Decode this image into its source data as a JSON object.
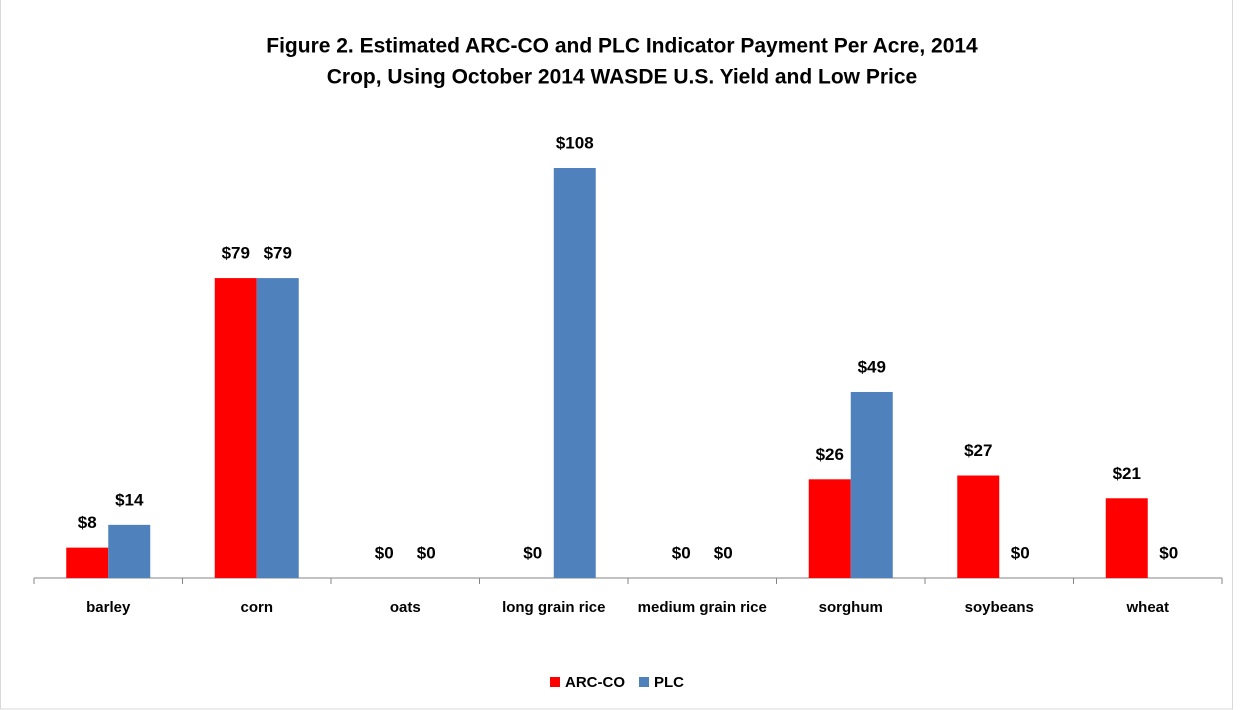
{
  "chart_data": {
    "type": "bar",
    "title": [
      "Figure 2.  Estimated ARC-CO and PLC Indicator Payment Per Acre, 2014",
      "Crop, Using October 2014 WASDE U.S. Yield and Low Price"
    ],
    "categories": [
      "barley",
      "corn",
      "oats",
      "long grain rice",
      "medium grain rice",
      "sorghum",
      "soybeans",
      "wheat"
    ],
    "series": [
      {
        "name": "ARC-CO",
        "color": "#ff0000",
        "values": [
          8,
          79,
          0,
          0,
          0,
          26,
          27,
          21
        ],
        "value_labels": [
          "$8",
          "$79",
          "$0",
          "$0",
          "$0",
          "$26",
          "$27",
          "$21"
        ]
      },
      {
        "name": "PLC",
        "color": "#4f81bd",
        "values": [
          14,
          79,
          0,
          108,
          0,
          49,
          0,
          0
        ],
        "value_labels": [
          "$14",
          "$79",
          "$0",
          "$108",
          "$0",
          "$49",
          "$0",
          "$0"
        ]
      }
    ],
    "legend": "bottom"
  }
}
